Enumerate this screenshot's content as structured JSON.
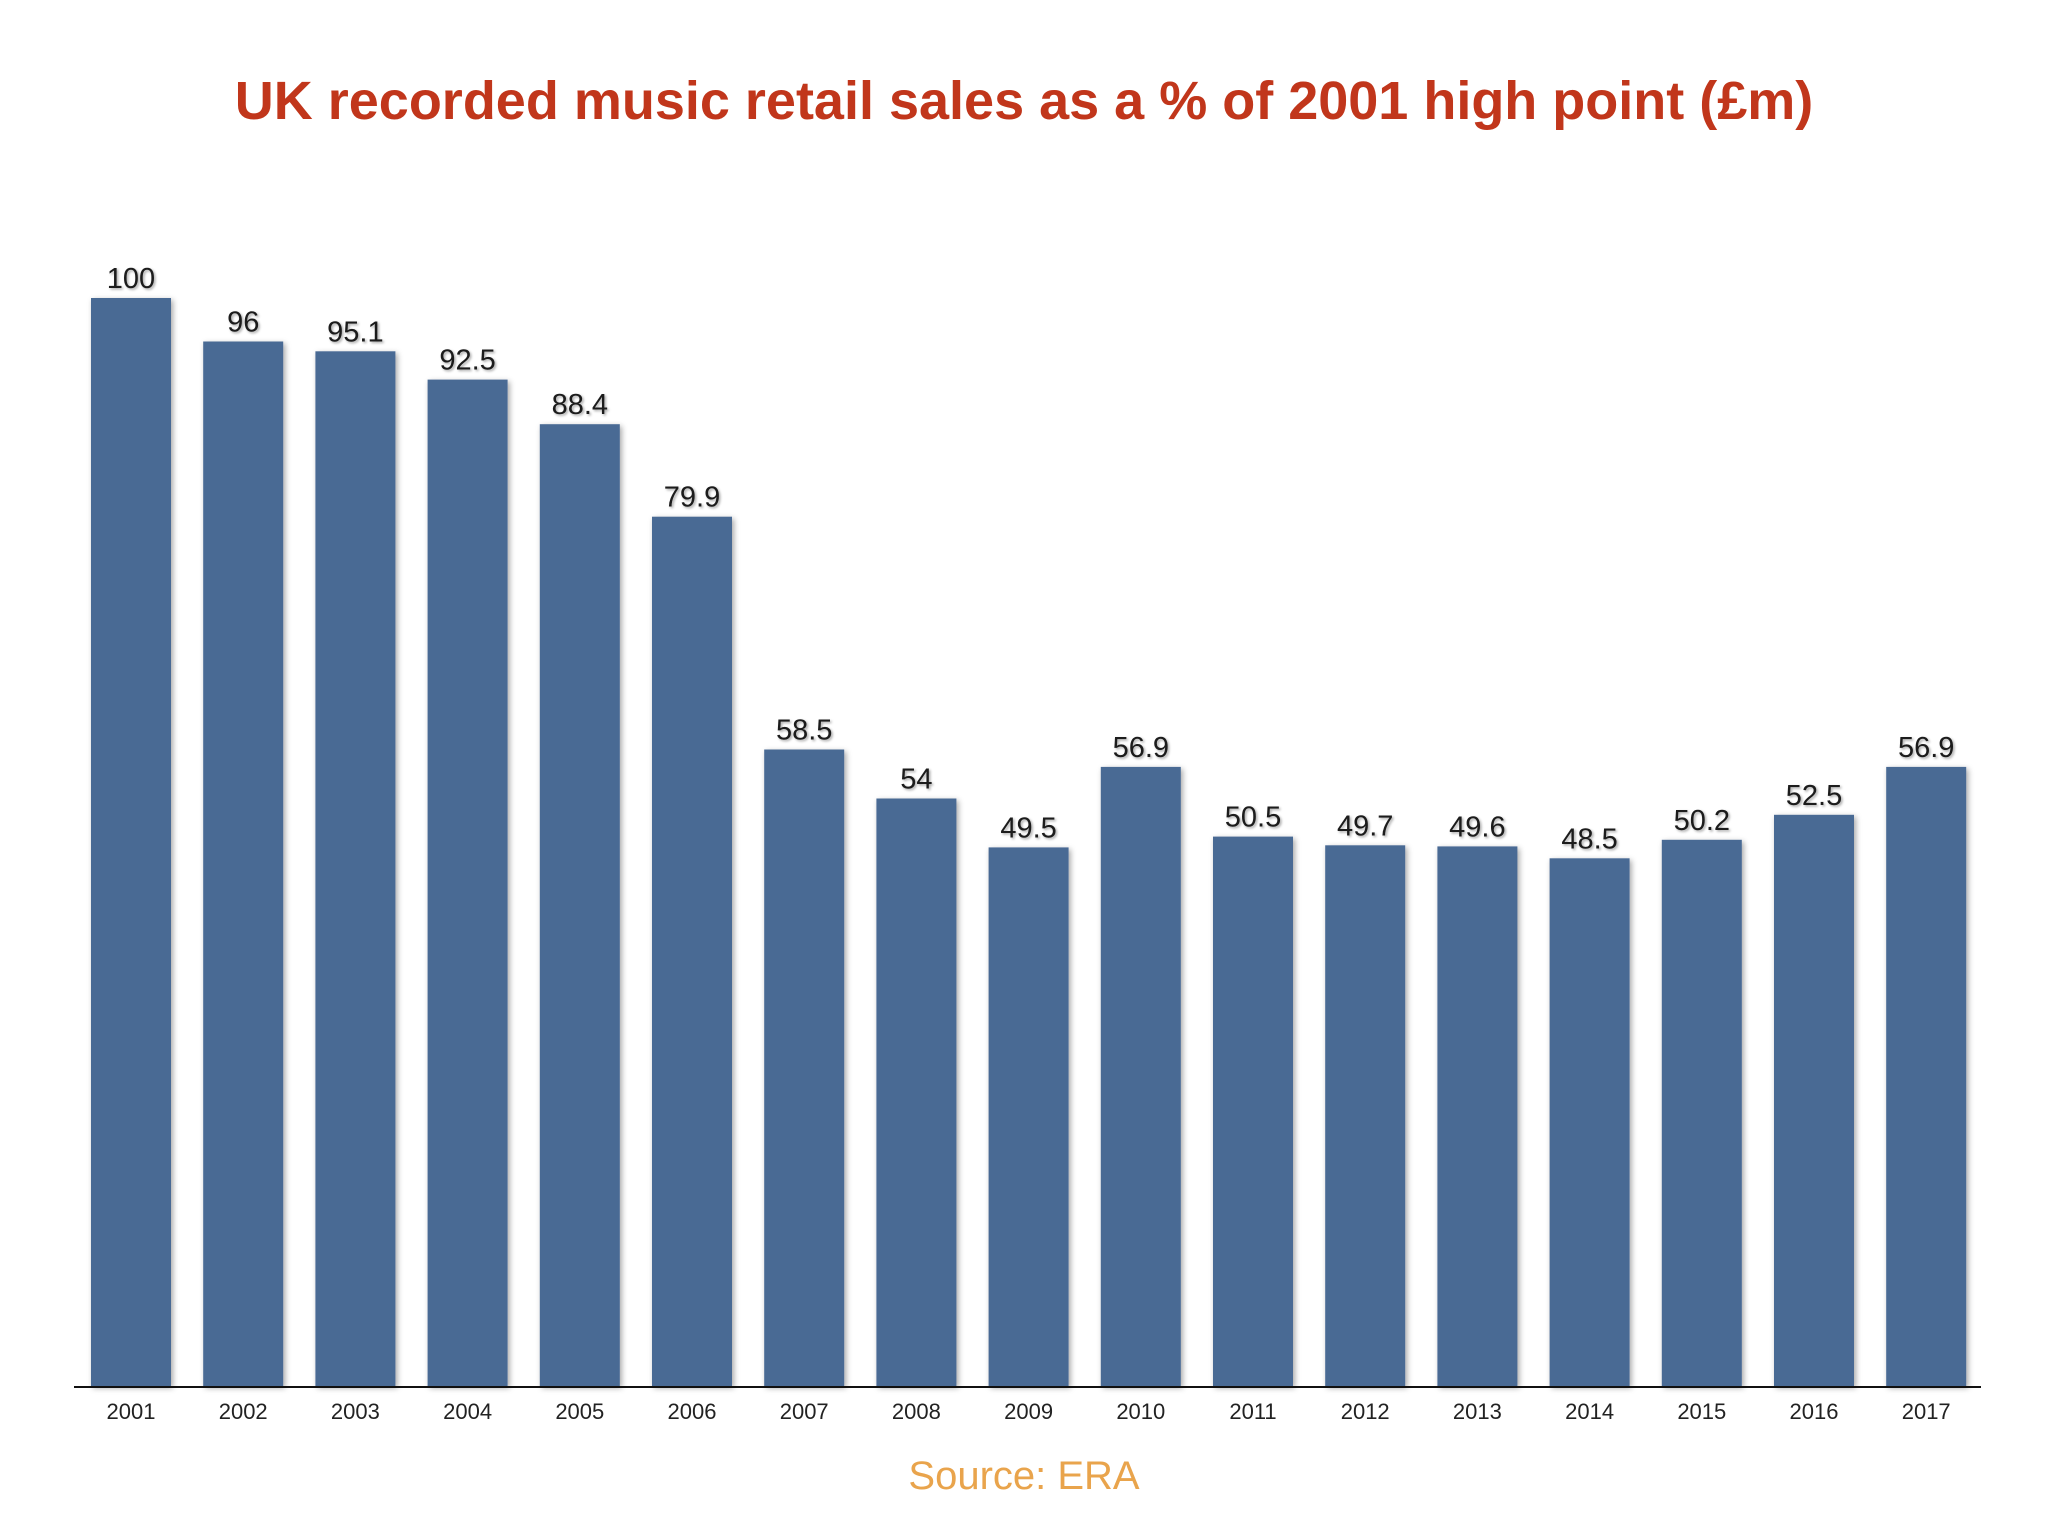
{
  "chart_data": {
    "type": "bar",
    "title": "UK recorded music retail sales as a % of 2001 high point (£m)",
    "categories": [
      "2001",
      "2002",
      "2003",
      "2004",
      "2005",
      "2006",
      "2007",
      "2008",
      "2009",
      "2010",
      "2011",
      "2012",
      "2013",
      "2014",
      "2015",
      "2016",
      "2017"
    ],
    "values": [
      100,
      96,
      95.1,
      92.5,
      88.4,
      79.9,
      58.5,
      54,
      49.5,
      56.9,
      50.5,
      49.7,
      49.6,
      48.5,
      50.2,
      52.5,
      56.9
    ],
    "value_labels": [
      "100",
      "96",
      "95.1",
      "92.5",
      "88.4",
      "79.9",
      "58.5",
      "54",
      "49.5",
      "56.9",
      "50.5",
      "49.7",
      "49.6",
      "48.5",
      "50.2",
      "52.5",
      "56.9"
    ],
    "ylim": [
      0,
      100
    ],
    "grid": false,
    "bar_color": "#4a6a94",
    "title_color": "#c1361b"
  },
  "source": "Source: ERA",
  "source_color": "#e9a44c"
}
